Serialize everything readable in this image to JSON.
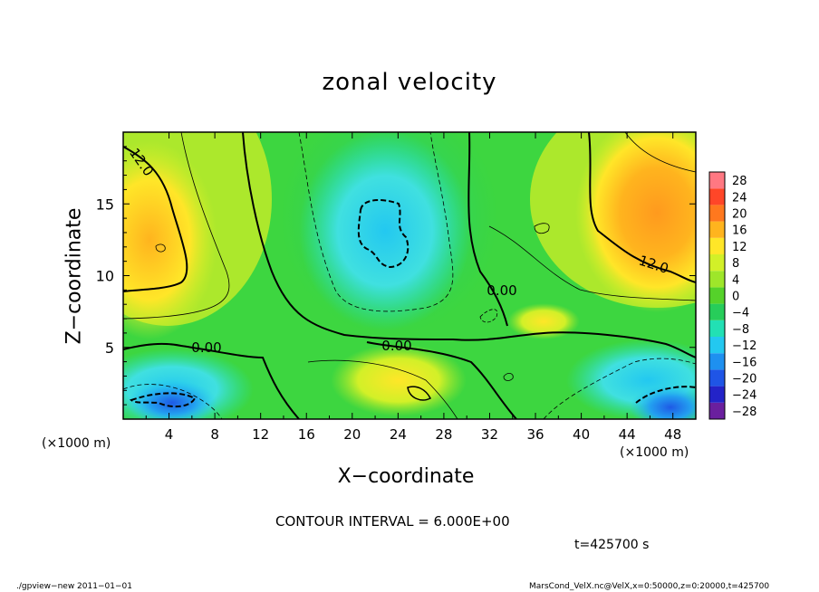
{
  "chart_data": {
    "type": "heatmap",
    "title": "zonal velocity",
    "xlabel": "X−coordinate",
    "ylabel": "Z−coordinate",
    "x_unit_left": "(×1000 m)",
    "x_unit_right": "(×1000 m)",
    "xlim": [
      0,
      50
    ],
    "ylim": [
      0,
      20
    ],
    "x_ticks": [
      4,
      8,
      12,
      16,
      20,
      24,
      28,
      32,
      36,
      40,
      44,
      48
    ],
    "y_ticks": [
      5,
      10,
      15
    ],
    "colorbar_levels": [
      -28,
      -24,
      -20,
      -16,
      -12,
      -8,
      -4,
      0,
      4,
      8,
      12,
      16,
      20,
      24,
      28
    ],
    "colorbar_labels": [
      "28",
      "24",
      "20",
      "16",
      "12",
      "8",
      "4",
      "0",
      "−4",
      "−8",
      "−12",
      "−16",
      "−20",
      "−24",
      "−28"
    ],
    "colorbar_colors": [
      "#6a1f9e",
      "#2323c8",
      "#1f55e6",
      "#1e90f0",
      "#23c8f0",
      "#22e0b4",
      "#27cd5a",
      "#55d22a",
      "#9ee62a",
      "#d2f028",
      "#ffe628",
      "#ffb41e",
      "#ff781e",
      "#ff4628",
      "#ff7882"
    ],
    "contour_labels": [
      "12.0",
      "12.0",
      "0.00",
      "0.00",
      "0.00"
    ],
    "contour_interval_label": "CONTOUR INTERVAL = 6.000E+00",
    "time_label": "t=425700 s",
    "footer_left": "./gpview−new  2011−01−01",
    "footer_right": "MarsCond_VelX.nc@VelX,x=0:50000,z=0:20000,t=425700"
  }
}
